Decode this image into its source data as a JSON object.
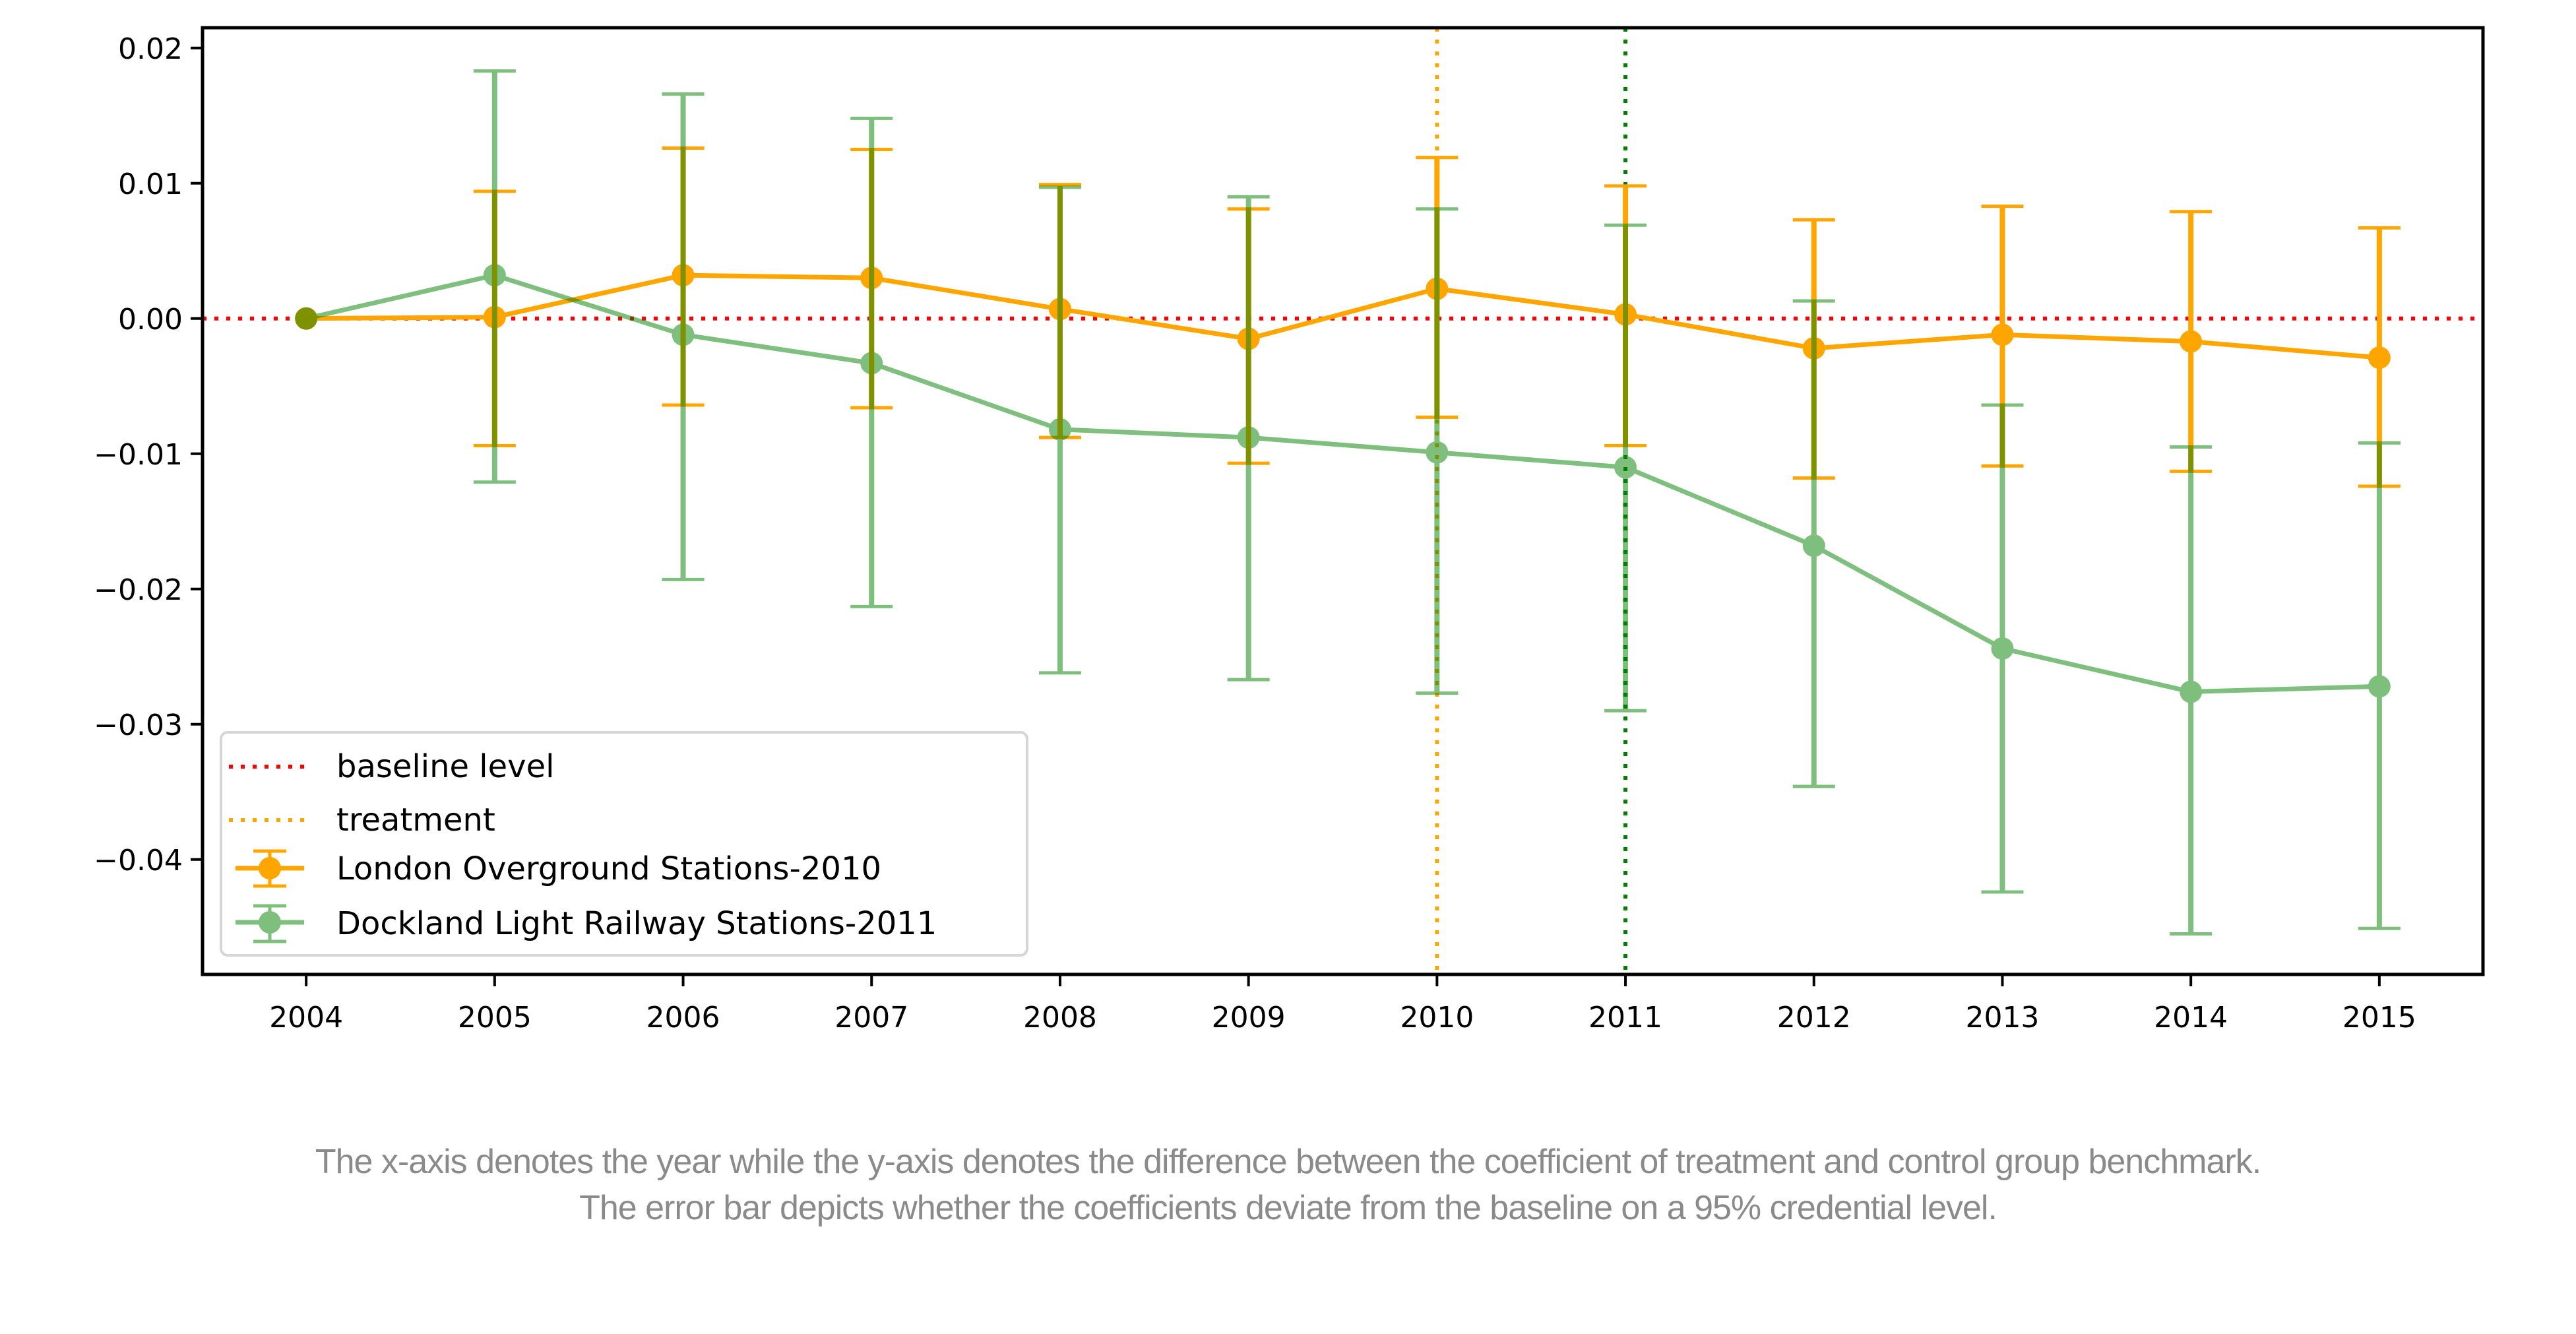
{
  "chart_data": {
    "type": "line",
    "subtype": "errorbar",
    "title": "",
    "xlabel": "",
    "ylabel": "",
    "x": [
      2004,
      2005,
      2006,
      2007,
      2008,
      2009,
      2010,
      2011,
      2012,
      2013,
      2014,
      2015
    ],
    "x_tick_labels": [
      "2004",
      "2005",
      "2006",
      "2007",
      "2008",
      "2009",
      "2010",
      "2011",
      "2012",
      "2013",
      "2014",
      "2015"
    ],
    "xlim": [
      2003.45,
      2015.55
    ],
    "y_ticks": [
      0.02,
      0.01,
      0.0,
      -0.01,
      -0.02,
      -0.03,
      -0.04
    ],
    "y_tick_labels": [
      "0.02",
      "0.01",
      "0.00",
      "−0.01",
      "−0.02",
      "−0.03",
      "−0.04"
    ],
    "ylim": [
      -0.0485,
      0.0215
    ],
    "grid": false,
    "legend_position": "lower-left",
    "reference_lines": [
      {
        "name": "baseline level",
        "orientation": "horizontal",
        "value": 0.0,
        "style": "dotted",
        "color": "#ff0000"
      },
      {
        "name": "treatment",
        "orientation": "vertical",
        "value": 2010,
        "style": "dotted",
        "color": "#ffa500"
      },
      {
        "name": "",
        "orientation": "vertical",
        "value": 2011,
        "style": "dotted",
        "color": "#008000"
      }
    ],
    "series": [
      {
        "name": "London Overground Stations-2010",
        "color": "#ffa500",
        "alpha": 1.0,
        "values": [
          0.0,
          0.0001,
          0.0032,
          0.003,
          0.0007,
          -0.0015,
          0.0022,
          0.0003,
          -0.0022,
          -0.0012,
          -0.0017,
          -0.0029
        ],
        "upper": [
          null,
          0.0094,
          0.0126,
          0.0125,
          0.0099,
          0.0081,
          0.0119,
          0.0098,
          0.0073,
          0.0083,
          0.0079,
          0.0067
        ],
        "lower": [
          null,
          -0.0094,
          -0.0064,
          -0.0066,
          -0.0088,
          -0.0107,
          -0.0073,
          -0.0094,
          -0.0118,
          -0.0109,
          -0.0113,
          -0.0124
        ]
      },
      {
        "name": "Dockland Light Railway Stations-2011",
        "color": "#008000",
        "alpha": 0.5,
        "values": [
          0.0,
          0.0032,
          -0.0012,
          -0.0033,
          -0.0082,
          -0.0088,
          -0.0099,
          -0.011,
          -0.0168,
          -0.0244,
          -0.0276,
          -0.0272
        ],
        "upper": [
          null,
          0.0183,
          0.0166,
          0.0148,
          0.0097,
          0.009,
          0.0081,
          0.0069,
          0.0013,
          -0.0064,
          -0.0095,
          -0.0092
        ],
        "lower": [
          null,
          -0.0121,
          -0.0193,
          -0.0213,
          -0.0262,
          -0.0267,
          -0.0277,
          -0.029,
          -0.0346,
          -0.0424,
          -0.0455,
          -0.0451
        ]
      }
    ]
  },
  "legend": {
    "items": [
      {
        "label": "baseline level",
        "kind": "dotted-line",
        "color": "#ff0000"
      },
      {
        "label": "treatment",
        "kind": "dotted-line",
        "color": "#ffa500"
      },
      {
        "label": "London Overground Stations-2010",
        "kind": "errorbar",
        "color": "#ffa500",
        "alpha": 1.0
      },
      {
        "label": "Dockland Light Railway Stations-2011",
        "kind": "errorbar",
        "color": "#008000",
        "alpha": 0.5
      }
    ]
  },
  "caption": {
    "line1": "The x-axis denotes the year while the y-axis denotes the difference between the coefficient of treatment and control group benchmark.",
    "line2": "The error bar depicts whether the coefficients deviate from the baseline on a 95% credential level."
  }
}
